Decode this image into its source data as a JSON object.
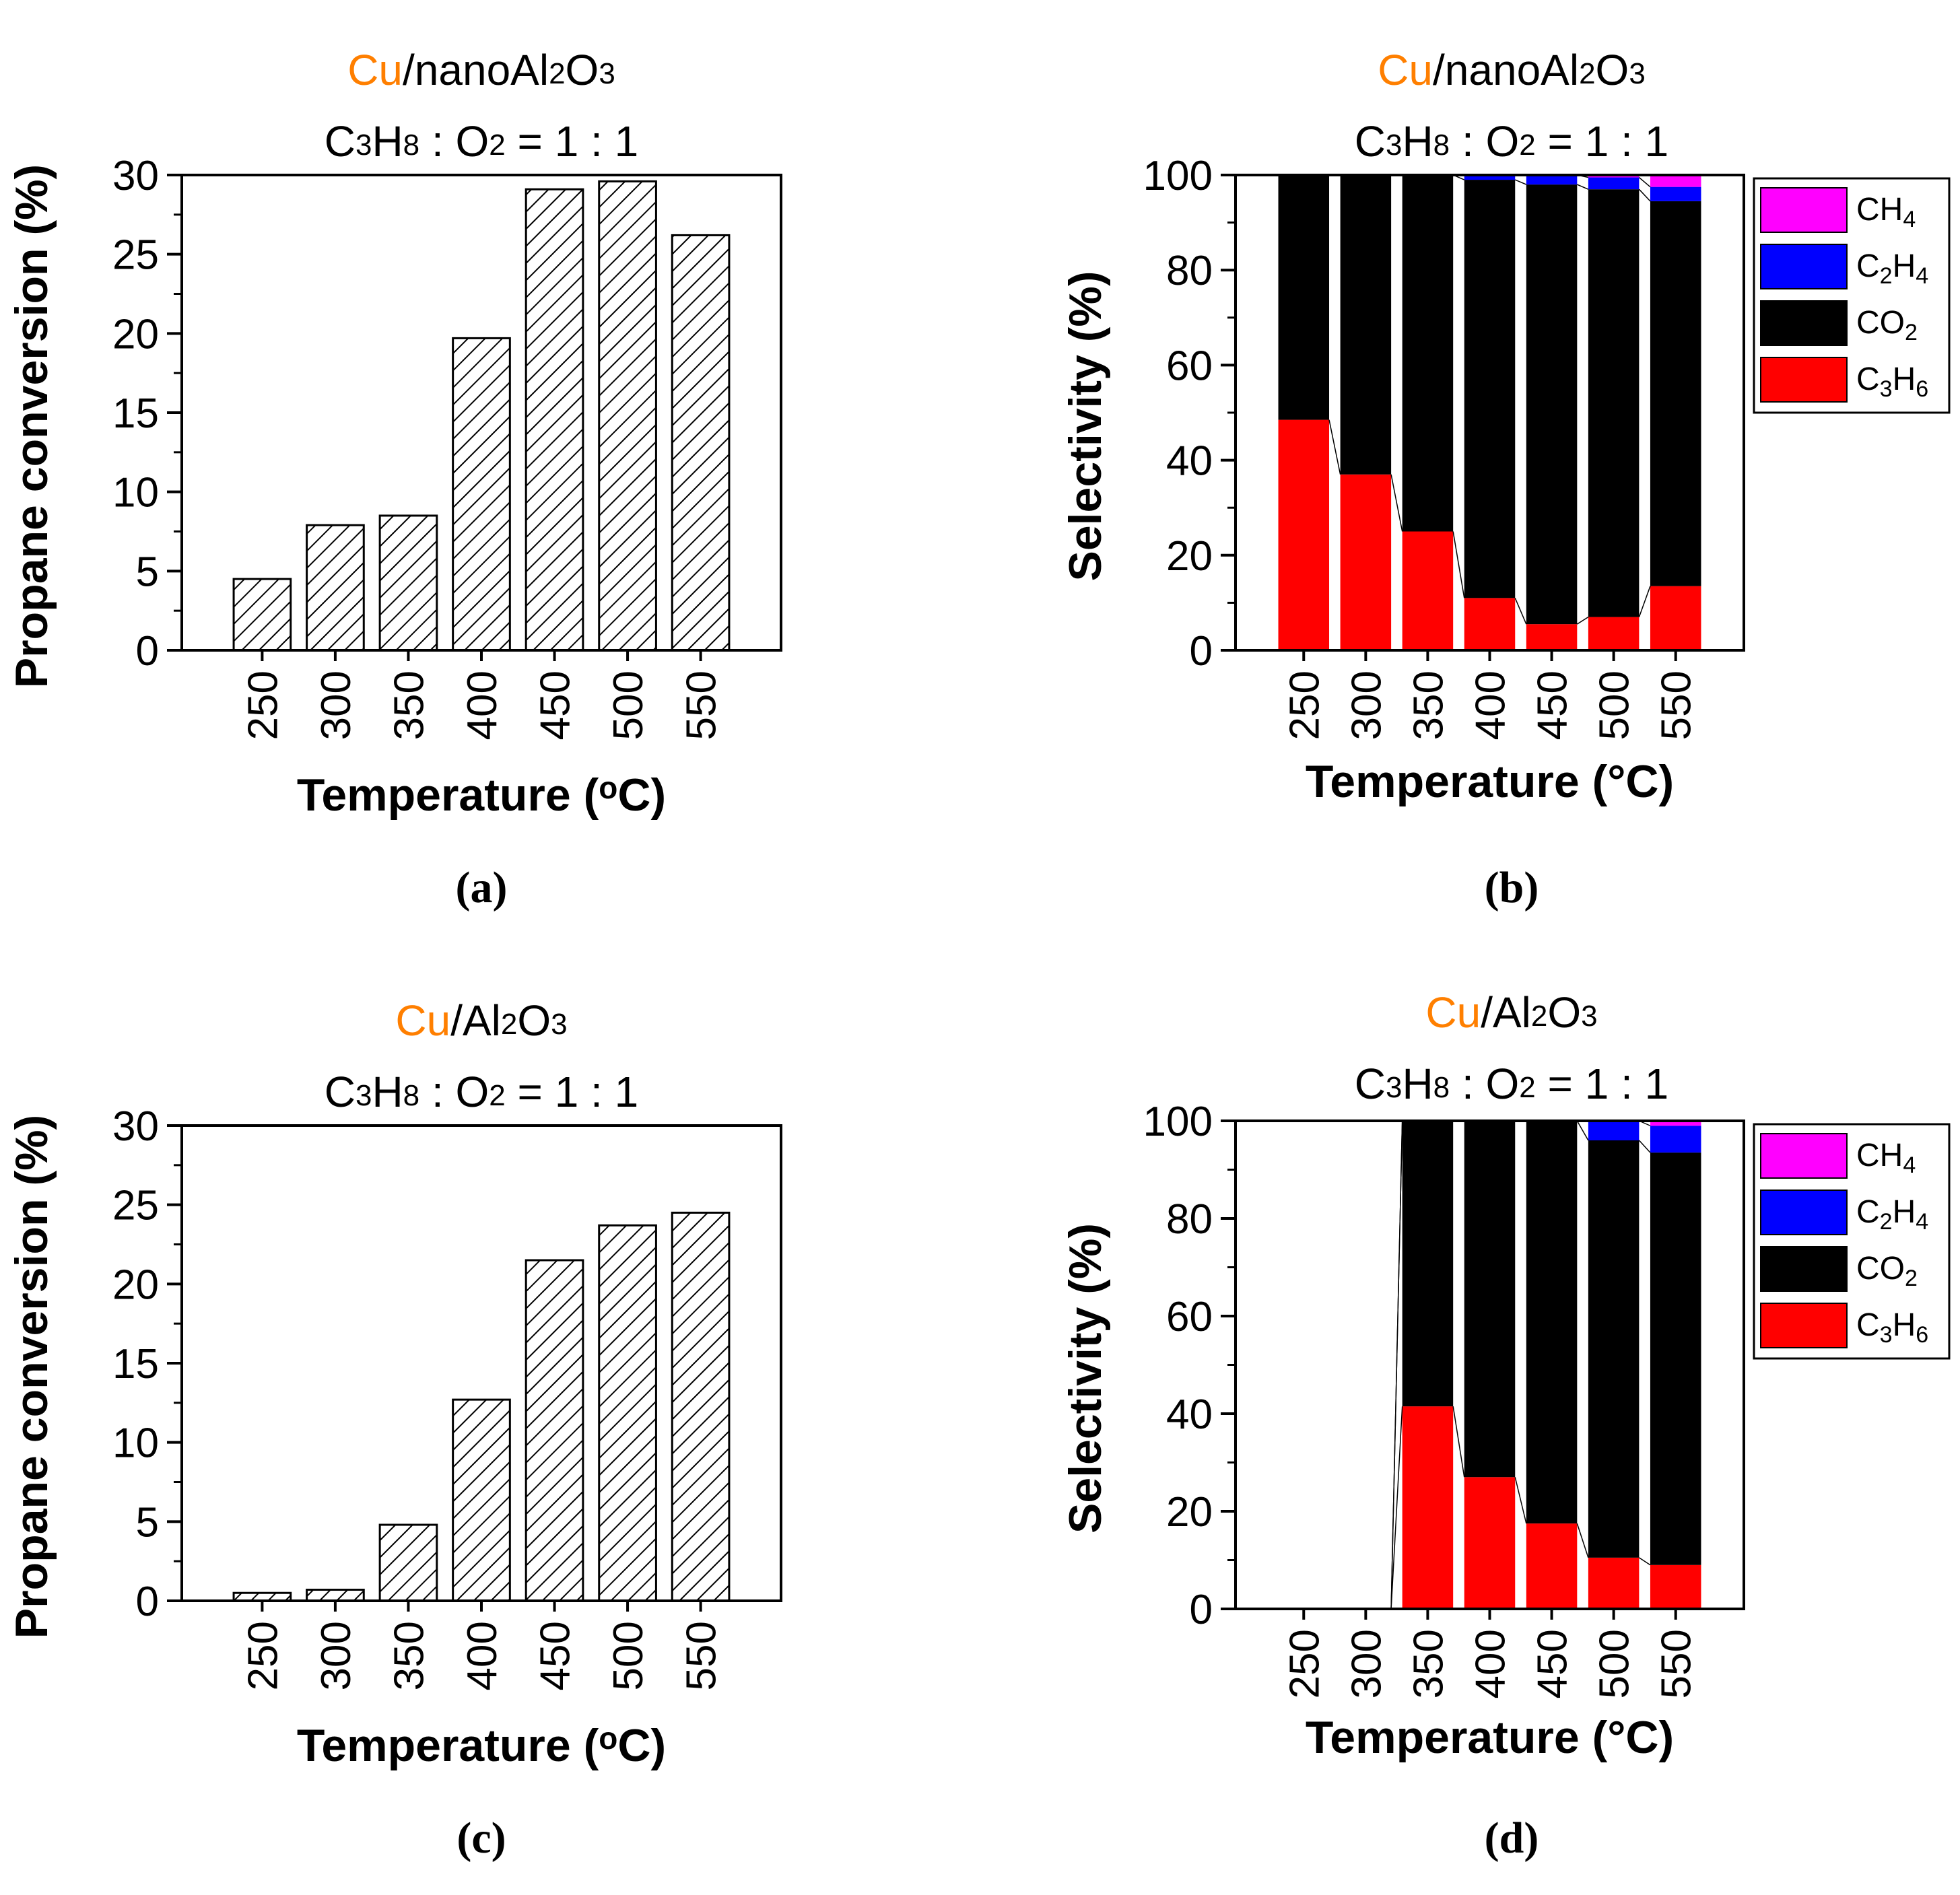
{
  "colors": {
    "accent": "#ff7f00",
    "c3h6": "#ff0000",
    "co2": "#000000",
    "c2h4": "#0000ff",
    "ch4": "#ff00ff"
  },
  "chart_data": [
    {
      "type": "bar",
      "panel": "(a)",
      "title_prefix": "Cu",
      "title_rest": "/nanoAl",
      "title_sub1": "2",
      "title_mid": "O",
      "title_sub2": "3",
      "subtitle": {
        "a": "C",
        "s1": "3",
        "b": "H",
        "s2": "8",
        "c": " : O",
        "s3": "2",
        "d": " = 1 : 1"
      },
      "xlabel": "Temperature (",
      "xlabel_sup": "o",
      "xlabel_end": "C)",
      "ylabel": "Propane conversion (%)",
      "categories": [
        "250",
        "300",
        "350",
        "400",
        "450",
        "500",
        "550"
      ],
      "values": [
        4.5,
        7.9,
        8.5,
        19.7,
        29.1,
        29.6,
        26.2
      ],
      "ylim": [
        0,
        30
      ],
      "yticks": [
        "0",
        "5",
        "10",
        "15",
        "20",
        "25",
        "30"
      ]
    },
    {
      "type": "stacked-bar",
      "panel": "(b)",
      "title_prefix": "Cu",
      "title_rest": "/nanoAl",
      "title_sub1": "2",
      "title_mid": "O",
      "title_sub2": "3",
      "subtitle": {
        "a": "C",
        "s1": "3",
        "b": "H",
        "s2": "8",
        "c": " : O",
        "s3": "2",
        "d": " = 1 : 1"
      },
      "xlabel": "Temperature (°C)",
      "ylabel": "Selectivity (%)",
      "categories": [
        "250",
        "300",
        "350",
        "400",
        "450",
        "500",
        "550"
      ],
      "ylim": [
        0,
        100
      ],
      "yticks": [
        "0",
        "20",
        "40",
        "60",
        "80",
        "100"
      ],
      "series": [
        {
          "name": "C3H6",
          "values": [
            48.5,
            37.0,
            25.0,
            11.0,
            5.5,
            7.0,
            13.5
          ]
        },
        {
          "name": "CO2",
          "values": [
            51.5,
            63.0,
            75.0,
            88.0,
            92.5,
            90.0,
            81.0
          ]
        },
        {
          "name": "C2H4",
          "values": [
            0,
            0,
            0,
            1.0,
            2.0,
            2.5,
            3.0
          ]
        },
        {
          "name": "CH4",
          "values": [
            0,
            0,
            0,
            0,
            0,
            0.5,
            2.5
          ]
        }
      ],
      "legend": [
        {
          "base": "CH",
          "sub": "4"
        },
        {
          "base": "C",
          "sub": "2",
          "base2": "H",
          "sub2": "4"
        },
        {
          "base": "CO",
          "sub": "2"
        },
        {
          "base": "C",
          "sub": "3",
          "base2": "H",
          "sub2": "6"
        }
      ]
    },
    {
      "type": "bar",
      "panel": "(c)",
      "title_prefix": "Cu",
      "title_rest": "/Al",
      "title_sub1": "2",
      "title_mid": "O",
      "title_sub2": "3",
      "subtitle": {
        "a": "C",
        "s1": "3",
        "b": "H",
        "s2": "8",
        "c": " : O",
        "s3": "2",
        "d": " = 1 : 1"
      },
      "xlabel": "Temperature (",
      "xlabel_sup": "o",
      "xlabel_end": "C)",
      "ylabel": "Propane conversion (%)",
      "categories": [
        "250",
        "300",
        "350",
        "400",
        "450",
        "500",
        "550"
      ],
      "values": [
        0.5,
        0.7,
        4.8,
        12.7,
        21.5,
        23.7,
        24.5
      ],
      "ylim": [
        0,
        30
      ],
      "yticks": [
        "0",
        "5",
        "10",
        "15",
        "20",
        "25",
        "30"
      ]
    },
    {
      "type": "stacked-bar",
      "panel": "(d)",
      "title_prefix": "Cu",
      "title_rest": "/Al",
      "title_sub1": "2",
      "title_mid": "O",
      "title_sub2": "3",
      "subtitle": {
        "a": "C",
        "s1": "3",
        "b": "H",
        "s2": "8",
        "c": " : O",
        "s3": "2",
        "d": " = 1 : 1"
      },
      "xlabel": "Temperature (°C)",
      "ylabel": "Selectivity (%)",
      "categories": [
        "250",
        "300",
        "350",
        "400",
        "450",
        "500",
        "550"
      ],
      "ylim": [
        0,
        100
      ],
      "yticks": [
        "0",
        "20",
        "40",
        "60",
        "80",
        "100"
      ],
      "series": [
        {
          "name": "C3H6",
          "values": [
            0,
            0,
            41.5,
            27.0,
            17.5,
            10.5,
            9.0
          ]
        },
        {
          "name": "CO2",
          "values": [
            0,
            0,
            58.5,
            73.0,
            82.5,
            85.5,
            84.5
          ]
        },
        {
          "name": "C2H4",
          "values": [
            0,
            0,
            0,
            0,
            0,
            4.0,
            5.5
          ]
        },
        {
          "name": "CH4",
          "values": [
            0,
            0,
            0,
            0,
            0,
            0,
            1.0
          ]
        }
      ],
      "legend": [
        {
          "base": "CH",
          "sub": "4"
        },
        {
          "base": "C",
          "sub": "2",
          "base2": "H",
          "sub2": "4"
        },
        {
          "base": "CO",
          "sub": "2"
        },
        {
          "base": "C",
          "sub": "3",
          "base2": "H",
          "sub2": "6"
        }
      ]
    }
  ]
}
